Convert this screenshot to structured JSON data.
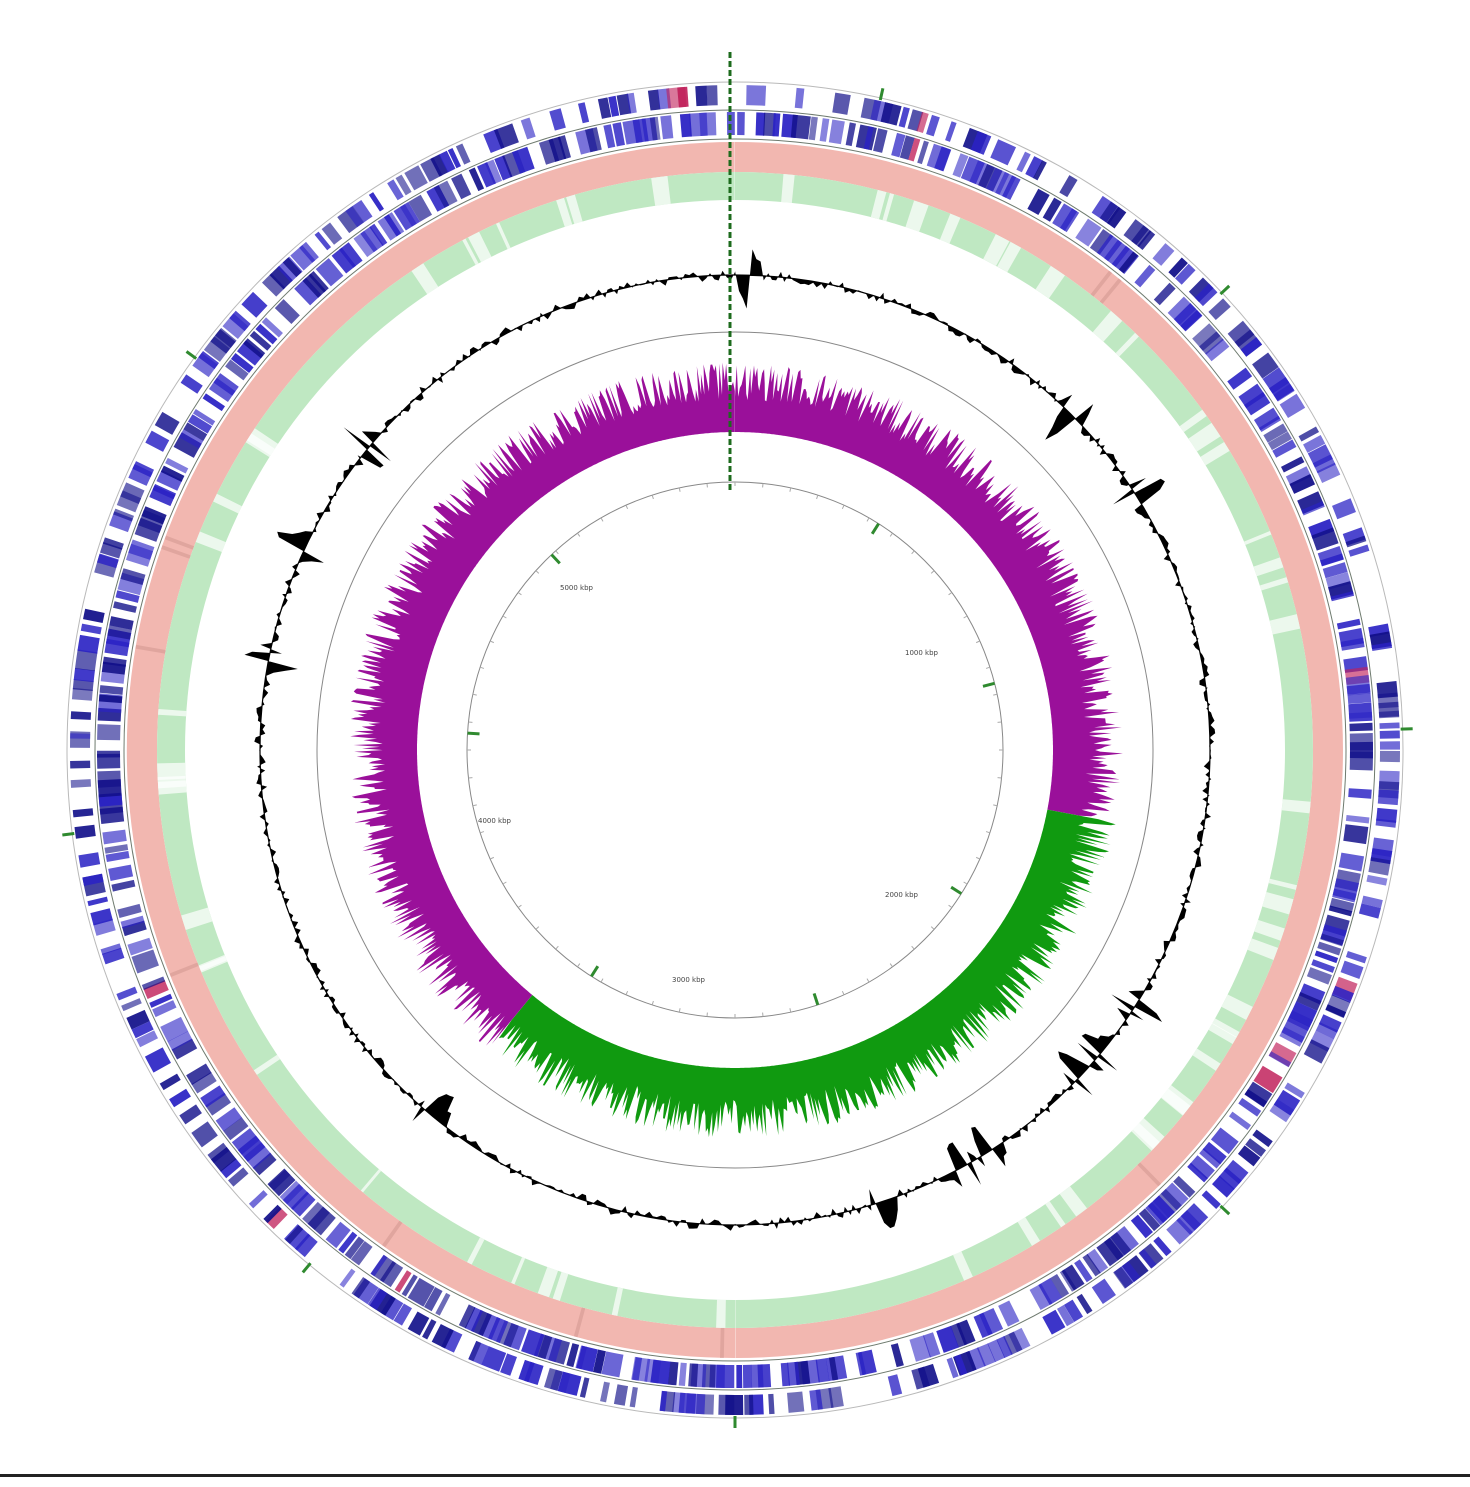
{
  "colors": {
    "cds_feature": "#2a22c4",
    "cds_dark": "#12108a",
    "rna_feature": "#c0205a",
    "blast_ring": "#f2b7b0",
    "blast_ring_2": "#bfe8c2",
    "gc_content": "#000000",
    "gc_skew_positive": "#109a10",
    "gc_skew_negative": "#9a109a",
    "backbone": "#888888",
    "start_marker": "#1d6b1d",
    "tick_marker": "#2f8a2f"
  },
  "icons": {
    "origin_marker": "dashed-origin-line-icon",
    "tick_marker": "green-tick-marker-icon"
  },
  "scale_labels": [
    "1000 kbp",
    "2000 kbp",
    "3000 kbp",
    "4000 kbp",
    "5000 kbp"
  ],
  "chart_data": {
    "type": "circular-genome-map",
    "rings": [
      "cds-forward-strand",
      "cds-reverse-strand",
      "blast-hits-1",
      "blast-hits-2",
      "gc-content",
      "gc-skew",
      "backbone"
    ],
    "gc_skew": {
      "positive_start_fraction": 0.28,
      "positive_end_fraction": 0.61
    }
  }
}
